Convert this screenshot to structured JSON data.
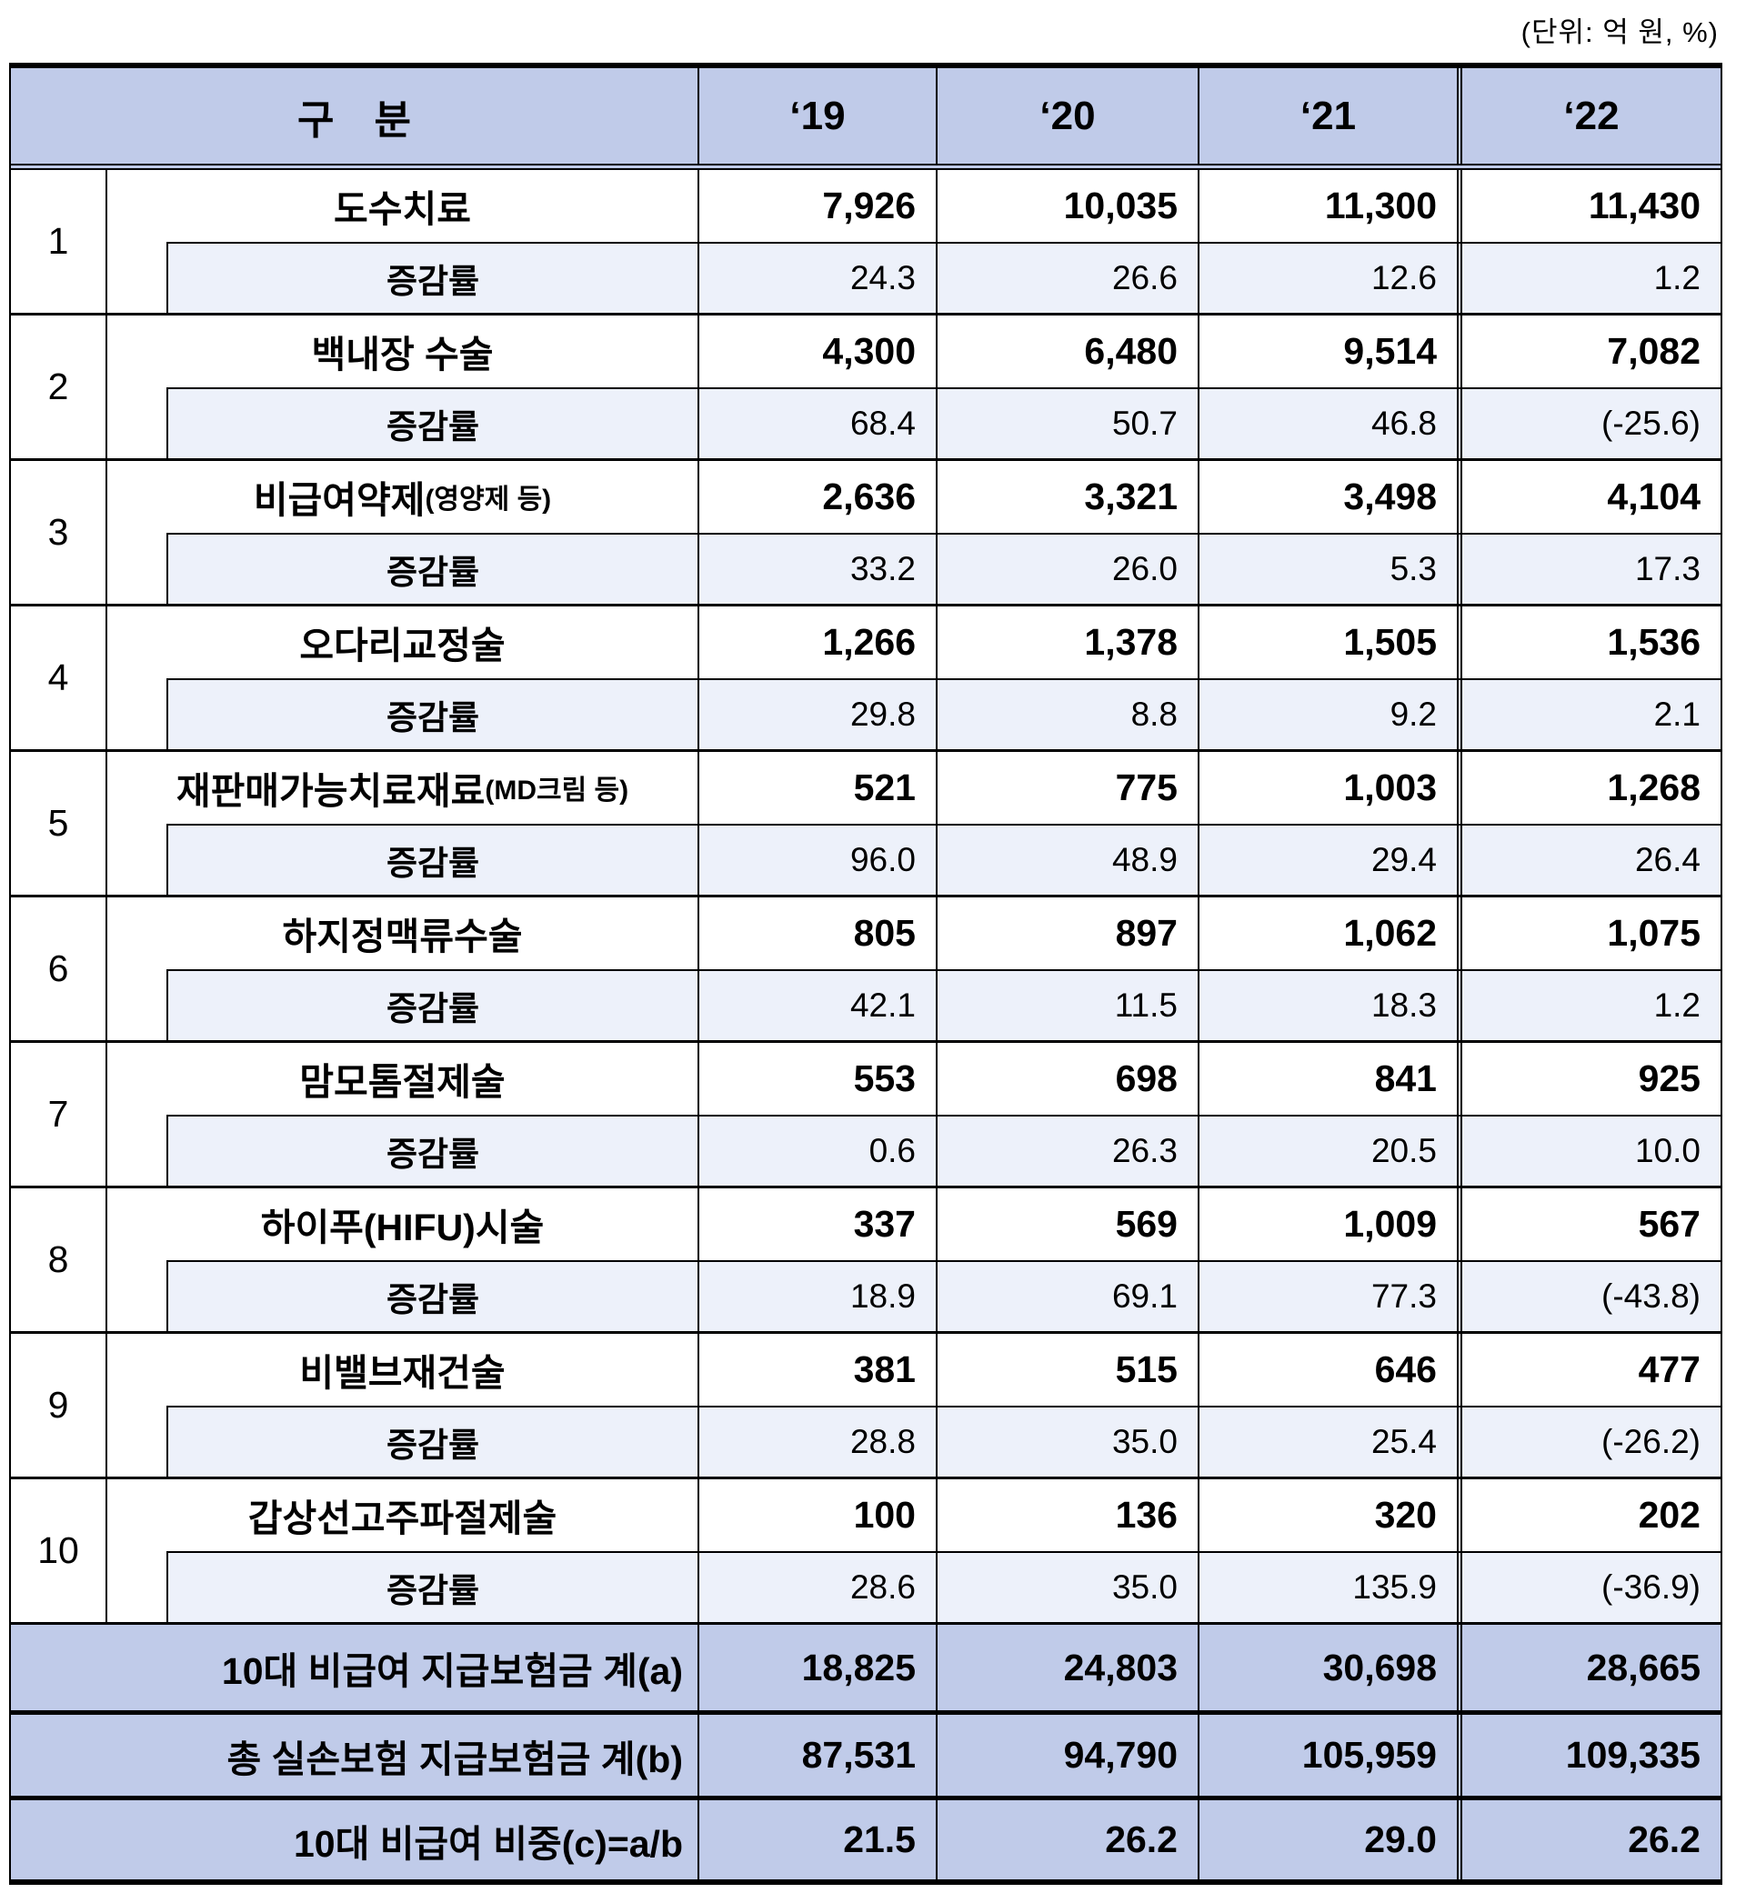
{
  "unit_label": "(단위: 억 원, %)",
  "table": {
    "header": {
      "category": "구　분",
      "years": [
        "‘19",
        "‘20",
        "‘21",
        "‘22"
      ]
    },
    "growth_label": "증감률",
    "rows": [
      {
        "no": "1",
        "name": "도수치료",
        "note": "",
        "values": [
          "7,926",
          "10,035",
          "11,300",
          "11,430"
        ],
        "growth": [
          "24.3",
          "26.6",
          "12.6",
          "1.2"
        ]
      },
      {
        "no": "2",
        "name": "백내장 수술",
        "note": "",
        "values": [
          "4,300",
          "6,480",
          "9,514",
          "7,082"
        ],
        "growth": [
          "68.4",
          "50.7",
          "46.8",
          "(-25.6)"
        ]
      },
      {
        "no": "3",
        "name": "비급여약제",
        "note": "(영양제 등)",
        "values": [
          "2,636",
          "3,321",
          "3,498",
          "4,104"
        ],
        "growth": [
          "33.2",
          "26.0",
          "5.3",
          "17.3"
        ]
      },
      {
        "no": "4",
        "name": "오다리교정술",
        "note": "",
        "values": [
          "1,266",
          "1,378",
          "1,505",
          "1,536"
        ],
        "growth": [
          "29.8",
          "8.8",
          "9.2",
          "2.1"
        ]
      },
      {
        "no": "5",
        "name": "재판매가능치료재료",
        "note": "(MD크림 등)",
        "values": [
          "521",
          "775",
          "1,003",
          "1,268"
        ],
        "growth": [
          "96.0",
          "48.9",
          "29.4",
          "26.4"
        ]
      },
      {
        "no": "6",
        "name": "하지정맥류수술",
        "note": "",
        "values": [
          "805",
          "897",
          "1,062",
          "1,075"
        ],
        "growth": [
          "42.1",
          "11.5",
          "18.3",
          "1.2"
        ]
      },
      {
        "no": "7",
        "name": "맘모톰절제술",
        "note": "",
        "values": [
          "553",
          "698",
          "841",
          "925"
        ],
        "growth": [
          "0.6",
          "26.3",
          "20.5",
          "10.0"
        ]
      },
      {
        "no": "8",
        "name": "하이푸(HIFU)시술",
        "note": "",
        "values": [
          "337",
          "569",
          "1,009",
          "567"
        ],
        "growth": [
          "18.9",
          "69.1",
          "77.3",
          "(-43.8)"
        ]
      },
      {
        "no": "9",
        "name": "비밸브재건술",
        "note": "",
        "values": [
          "381",
          "515",
          "646",
          "477"
        ],
        "growth": [
          "28.8",
          "35.0",
          "25.4",
          "(-26.2)"
        ]
      },
      {
        "no": "10",
        "name": "갑상선고주파절제술",
        "note": "",
        "values": [
          "100",
          "136",
          "320",
          "202"
        ],
        "growth": [
          "28.6",
          "35.0",
          "135.9",
          "(-36.9)"
        ]
      }
    ],
    "footers": [
      {
        "label": "10대 비급여 지급보험금 계(a)",
        "values": [
          "18,825",
          "24,803",
          "30,698",
          "28,665"
        ]
      },
      {
        "label": "총 실손보험 지급보험금 계(b)",
        "values": [
          "87,531",
          "94,790",
          "105,959",
          "109,335"
        ]
      },
      {
        "label": "10대 비급여 비중(c)=a/b",
        "values": [
          "21.5",
          "26.2",
          "29.0",
          "26.2"
        ]
      }
    ]
  },
  "colors": {
    "header_bg": "#c0cbe9",
    "growth_row_bg": "#edf1fa",
    "border": "#000000"
  }
}
